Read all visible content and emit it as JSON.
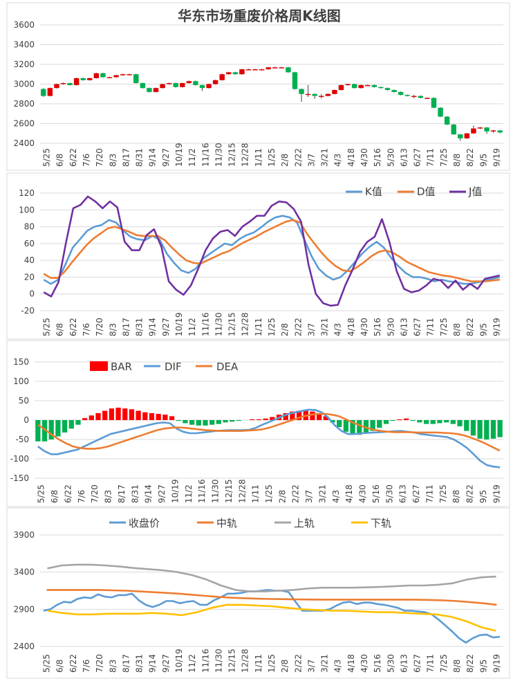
{
  "chart_data": [
    {
      "type": "candlestick",
      "title": "华东市场重废价格周K线图",
      "ylim": [
        2400,
        3600
      ],
      "yticks": [
        2400,
        2600,
        2800,
        3000,
        3200,
        3400,
        3600
      ],
      "xtick_labels": [
        "5/25",
        "6/8",
        "6/22",
        "7/6",
        "7/20",
        "8/3",
        "8/17",
        "8/31",
        "9/14",
        "9/27",
        "10/19",
        "11/2",
        "11/16",
        "11/30",
        "12/15",
        "12/28",
        "1/11",
        "1/25",
        "2/8",
        "2/22",
        "3/7",
        "3/21",
        "4/3",
        "4/18",
        "4/30",
        "5/16",
        "5/30",
        "6/13",
        "6/27",
        "7/11",
        "7/25",
        "8/8",
        "8/22",
        "9/5",
        "9/19"
      ],
      "up_color": "#e00000",
      "down_color": "#00b050",
      "closes": [
        2880,
        2960,
        3000,
        3010,
        2990,
        3060,
        3040,
        3060,
        3110,
        3070,
        3070,
        3090,
        3100,
        3100,
        3010,
        2960,
        2920,
        2960,
        3000,
        3010,
        2970,
        3010,
        3030,
        2990,
        2960,
        3000,
        3040,
        3100,
        3120,
        3100,
        3150,
        3150,
        3150,
        3150,
        3170,
        3170,
        3170,
        3120,
        2950,
        2900,
        2900,
        2880,
        2880,
        2900,
        2940,
        2990,
        3000,
        2960,
        2990,
        2990,
        2970,
        2960,
        2940,
        2920,
        2890,
        2880,
        2880,
        2860,
        2860,
        2760,
        2670,
        2590,
        2490,
        2450,
        2500,
        2550,
        2560,
        2520,
        2530,
        2510
      ],
      "opens": [
        2950,
        2880,
        2960,
        3000,
        3010,
        2990,
        3060,
        3040,
        3060,
        3110,
        3070,
        3070,
        3090,
        3100,
        3100,
        3010,
        2960,
        2920,
        2960,
        3000,
        3010,
        2970,
        3010,
        3030,
        2990,
        2960,
        3000,
        3040,
        3100,
        3120,
        3100,
        3150,
        3150,
        3150,
        3150,
        3170,
        3170,
        3170,
        3120,
        2950,
        2900,
        2900,
        2880,
        2880,
        2900,
        2940,
        2990,
        3000,
        2960,
        2990,
        2990,
        2970,
        2960,
        2940,
        2920,
        2890,
        2880,
        2880,
        2860,
        2860,
        2760,
        2670,
        2590,
        2490,
        2450,
        2500,
        2550,
        2560,
        2520,
        2530
      ],
      "highs": [
        2960,
        2965,
        3005,
        3015,
        3015,
        3065,
        3065,
        3065,
        3115,
        3115,
        3075,
        3095,
        3105,
        3105,
        3105,
        3015,
        2965,
        2965,
        3005,
        3015,
        3015,
        3015,
        3035,
        3035,
        2995,
        3005,
        3045,
        3105,
        3125,
        3125,
        3155,
        3155,
        3155,
        3155,
        3175,
        3175,
        3175,
        3175,
        3125,
        2955,
        2990,
        2905,
        2900,
        2905,
        2945,
        2995,
        3005,
        3005,
        2995,
        2995,
        2995,
        2975,
        2965,
        2945,
        2925,
        2895,
        2890,
        2885,
        2865,
        2865,
        2765,
        2675,
        2595,
        2495,
        2505,
        2580,
        2565,
        2565,
        2535,
        2535
      ],
      "lows": [
        2870,
        2875,
        2955,
        2995,
        2985,
        2985,
        3035,
        3035,
        3055,
        3065,
        3065,
        3065,
        3085,
        3095,
        3005,
        2955,
        2915,
        2915,
        2955,
        2995,
        2965,
        2965,
        3005,
        2985,
        2930,
        2955,
        2995,
        3035,
        3095,
        3095,
        3095,
        3145,
        3145,
        3145,
        3145,
        3165,
        3165,
        3115,
        2945,
        2820,
        2870,
        2850,
        2855,
        2875,
        2895,
        2935,
        2985,
        2955,
        2955,
        2985,
        2965,
        2955,
        2935,
        2915,
        2885,
        2875,
        2855,
        2855,
        2855,
        2755,
        2665,
        2585,
        2485,
        2425,
        2445,
        2495,
        2545,
        2495,
        2505,
        2500
      ]
    },
    {
      "type": "line",
      "ylim": [
        -20,
        120
      ],
      "yticks": [
        -20,
        0,
        20,
        40,
        60,
        80,
        100,
        120
      ],
      "series": [
        {
          "name": "K值",
          "color": "#5b9bd5",
          "values": [
            17,
            12,
            17,
            35,
            55,
            65,
            75,
            80,
            82,
            88,
            85,
            75,
            68,
            65,
            64,
            69,
            65,
            48,
            37,
            28,
            25,
            30,
            42,
            48,
            54,
            60,
            58,
            65,
            70,
            73,
            79,
            86,
            91,
            93,
            91,
            85,
            65,
            45,
            30,
            22,
            17,
            20,
            28,
            38,
            48,
            56,
            62,
            55,
            43,
            33,
            25,
            20,
            20,
            18,
            15,
            17,
            15,
            14,
            12,
            12,
            14,
            16,
            18,
            20
          ]
        },
        {
          "name": "D值",
          "color": "#ed7d31",
          "values": [
            24,
            19,
            19,
            27,
            38,
            48,
            58,
            66,
            72,
            78,
            80,
            77,
            74,
            70,
            69,
            69,
            69,
            64,
            55,
            47,
            40,
            37,
            36,
            40,
            44,
            48,
            51,
            56,
            61,
            65,
            69,
            74,
            78,
            82,
            86,
            88,
            85,
            71,
            60,
            49,
            40,
            33,
            28,
            27,
            32,
            38,
            45,
            50,
            52,
            49,
            44,
            38,
            34,
            30,
            26,
            24,
            22,
            21,
            19,
            17,
            15,
            15,
            15,
            16,
            17
          ]
        },
        {
          "name": "J值",
          "color": "#7030a0",
          "values": [
            2,
            -3,
            14,
            60,
            102,
            106,
            116,
            110,
            102,
            110,
            103,
            62,
            52,
            52,
            70,
            77,
            56,
            15,
            5,
            -1,
            10,
            30,
            52,
            66,
            74,
            76,
            69,
            80,
            86,
            93,
            93,
            105,
            110,
            109,
            101,
            86,
            35,
            0,
            -11,
            -14,
            -13,
            10,
            29,
            50,
            62,
            68,
            89,
            62,
            27,
            6,
            2,
            4,
            10,
            18,
            16,
            7,
            16,
            5,
            12,
            6,
            18,
            20,
            22
          ]
        }
      ],
      "xtick_labels": [
        "5/25",
        "6/8",
        "6/22",
        "7/6",
        "7/20",
        "8/3",
        "8/17",
        "8/31",
        "9/14",
        "9/27",
        "10/19",
        "11/2",
        "11/16",
        "11/30",
        "12/15",
        "12/28",
        "1/11",
        "1/25",
        "2/8",
        "2/22",
        "3/7",
        "3/21",
        "4/3",
        "4/18",
        "4/30",
        "5/16",
        "5/30",
        "6/13",
        "6/27",
        "7/11",
        "7/25",
        "8/8",
        "8/22",
        "9/5",
        "9/19"
      ]
    },
    {
      "type": "bar+line",
      "ylim": [
        -150,
        150
      ],
      "yticks": [
        -150,
        -100,
        -50,
        0,
        50,
        100,
        150
      ],
      "bar_series": {
        "name": "BAR",
        "up_color": "#ff0000",
        "down_color": "#00b050",
        "values": [
          -55,
          -55,
          -50,
          -42,
          -32,
          -22,
          -12,
          5,
          12,
          18,
          24,
          30,
          32,
          30,
          28,
          24,
          20,
          18,
          16,
          14,
          10,
          -2,
          -8,
          -12,
          -14,
          -14,
          -12,
          -10,
          -6,
          -4,
          -2,
          0,
          2,
          2,
          4,
          8,
          14,
          18,
          22,
          24,
          24,
          22,
          18,
          10,
          -6,
          -18,
          -30,
          -36,
          -38,
          -34,
          -28,
          -20,
          -10,
          -2,
          2,
          4,
          -2,
          -6,
          -10,
          -10,
          -8,
          -6,
          -10,
          -16,
          -28,
          -40,
          -48,
          -50,
          -48,
          -44
        ]
      },
      "series": [
        {
          "name": "DIF",
          "color": "#5b9bd5",
          "values": [
            -68,
            -80,
            -88,
            -88,
            -84,
            -80,
            -76,
            -68,
            -60,
            -52,
            -44,
            -36,
            -32,
            -28,
            -24,
            -20,
            -16,
            -12,
            -8,
            -6,
            -8,
            -22,
            -30,
            -34,
            -34,
            -32,
            -30,
            -28,
            -27,
            -26,
            -26,
            -26,
            -25,
            -20,
            -12,
            -5,
            2,
            10,
            16,
            20,
            24,
            27,
            26,
            20,
            6,
            -14,
            -28,
            -36,
            -36,
            -34,
            -33,
            -32,
            -31,
            -30,
            -29,
            -28,
            -30,
            -32,
            -36,
            -38,
            -40,
            -42,
            -44,
            -50,
            -60,
            -72,
            -88,
            -105,
            -116,
            -120,
            -122
          ]
        },
        {
          "name": "DEA",
          "color": "#ed7d31",
          "values": [
            -12,
            -25,
            -38,
            -50,
            -60,
            -68,
            -72,
            -74,
            -74,
            -72,
            -68,
            -62,
            -56,
            -50,
            -44,
            -38,
            -32,
            -26,
            -22,
            -20,
            -19,
            -20,
            -22,
            -24,
            -26,
            -27,
            -28,
            -28,
            -28,
            -28,
            -27,
            -26,
            -24,
            -20,
            -14,
            -8,
            -2,
            4,
            10,
            14,
            16,
            16,
            14,
            10,
            2,
            -6,
            -14,
            -20,
            -25,
            -28,
            -30,
            -31,
            -31,
            -31,
            -32,
            -32,
            -32,
            -32,
            -33,
            -34,
            -36,
            -40,
            -46,
            -53,
            -61,
            -70,
            -79
          ]
        }
      ],
      "xtick_labels": [
        "5/25",
        "6/8",
        "6/22",
        "7/6",
        "7/20",
        "8/3",
        "8/17",
        "8/31",
        "9/14",
        "9/27",
        "10/19",
        "11/2",
        "11/16",
        "11/30",
        "12/15",
        "12/28",
        "1/11",
        "1/25",
        "2/8",
        "2/22",
        "3/7",
        "3/21",
        "4/3",
        "4/18",
        "4/30",
        "5/16",
        "5/30",
        "6/13",
        "6/27",
        "7/11",
        "7/25",
        "8/8",
        "8/22",
        "9/5",
        "9/19"
      ]
    },
    {
      "type": "line",
      "ylim": [
        2400,
        3900
      ],
      "yticks": [
        2400,
        2900,
        3400,
        3900
      ],
      "series": [
        {
          "name": "收盘价",
          "color": "#5b9bd5",
          "values": [
            2880,
            2900,
            2960,
            3000,
            2990,
            3040,
            3060,
            3050,
            3100,
            3070,
            3060,
            3090,
            3090,
            3110,
            3020,
            2960,
            2930,
            2960,
            3010,
            3010,
            2980,
            3000,
            3010,
            2960,
            2960,
            3020,
            3060,
            3110,
            3110,
            3120,
            3140,
            3140,
            3150,
            3160,
            3150,
            3150,
            3130,
            3000,
            2880,
            2880,
            2880,
            2880,
            2900,
            2950,
            2990,
            3000,
            2970,
            2990,
            2990,
            2970,
            2960,
            2940,
            2920,
            2880,
            2880,
            2870,
            2860,
            2830,
            2760,
            2680,
            2600,
            2510,
            2450,
            2510,
            2550,
            2560,
            2520,
            2530
          ]
        },
        {
          "name": "中轨",
          "color": "#ed7d31",
          "values": [
            3160,
            3160,
            3160,
            3160,
            3160,
            3155,
            3150,
            3140,
            3130,
            3120,
            3110,
            3095,
            3080,
            3065,
            3055,
            3048,
            3042,
            3038,
            3035,
            3033,
            3031,
            3030,
            3030,
            3030,
            3030,
            3030,
            3030,
            3030,
            3028,
            3025,
            3020,
            3010,
            2995,
            2980,
            2960
          ]
        },
        {
          "name": "上轨",
          "color": "#a5a5a5",
          "values": [
            3450,
            3490,
            3500,
            3500,
            3490,
            3475,
            3455,
            3440,
            3425,
            3400,
            3360,
            3300,
            3220,
            3160,
            3140,
            3140,
            3150,
            3160,
            3180,
            3190,
            3190,
            3190,
            3195,
            3200,
            3210,
            3220,
            3220,
            3230,
            3250,
            3300,
            3330,
            3340
          ]
        },
        {
          "name": "下轨",
          "color": "#ffc000",
          "values": [
            2880,
            2850,
            2830,
            2830,
            2840,
            2840,
            2840,
            2850,
            2840,
            2820,
            2860,
            2920,
            2960,
            2960,
            2950,
            2940,
            2920,
            2900,
            2890,
            2880,
            2880,
            2870,
            2860,
            2860,
            2850,
            2840,
            2830,
            2800,
            2740,
            2660,
            2610
          ]
        }
      ],
      "xtick_labels": [
        "5/25",
        "6/8",
        "6/22",
        "7/6",
        "7/20",
        "8/3",
        "8/17",
        "8/31",
        "9/14",
        "9/27",
        "10/19",
        "11/2",
        "11/16",
        "11/30",
        "12/15",
        "12/28",
        "1/11",
        "1/25",
        "2/8",
        "2/22",
        "3/7",
        "3/21",
        "4/3",
        "4/18",
        "4/30",
        "5/16",
        "5/30",
        "6/13",
        "6/27",
        "7/11",
        "7/25",
        "8/8",
        "8/22",
        "9/5",
        "9/19"
      ]
    }
  ]
}
